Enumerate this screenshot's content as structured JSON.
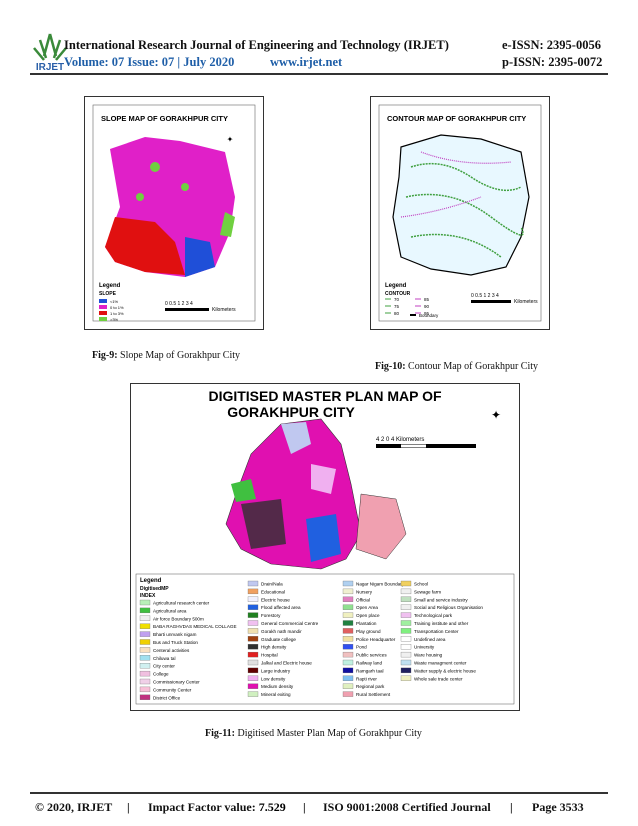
{
  "header": {
    "journal": "International Research Journal of Engineering and Technology (IRJET)",
    "eissn": "e-ISSN: 2395-0056",
    "volume": "Volume: 07 Issue: 07 | July 2020",
    "website": "www.irjet.net",
    "pissn": "p-ISSN: 2395-0072",
    "logo": "IRJET"
  },
  "fig9": {
    "title": "SLOPE MAP OF GORAKHPUR CITY",
    "legend_title": "Legend",
    "legend_sub": "SLOPE",
    "scale": "0 0.5 1  2  3  4",
    "scale_unit": "Kilometers",
    "caption_label": "Fig-9:",
    "caption": "Slope Map of Gorakhpur City",
    "items": [
      {
        "label": "<1%",
        "color": "#1f4fd8"
      },
      {
        "label": "0 to 1%",
        "color": "#e020c8"
      },
      {
        "label": "1 to 3%",
        "color": "#e01010"
      },
      {
        "label": ">3%",
        "color": "#70d040"
      }
    ]
  },
  "fig10": {
    "title": "CONTOUR MAP OF GORAKHPUR CITY",
    "legend_title": "Legend",
    "legend_sub": "CONTOUR",
    "scale": "0 0.5 1  2  3  4",
    "scale_unit": "Kilometers",
    "caption_label": "Fig-10:",
    "caption": "Contour Map of Gorakhpur City",
    "items": [
      "70",
      "75",
      "80",
      "85",
      "90",
      "95",
      "Boundary"
    ]
  },
  "fig11": {
    "title": "DIGITISED MASTER PLAN MAP OF",
    "title2": "GORAKHPUR CITY",
    "scale": "4      2      0                    4 Kilometers",
    "legend_title": "Legend",
    "legend_sub": "DigitisedMP",
    "legend_index": "INDEX",
    "caption_label": "Fig-11:",
    "caption": "Digitised Master Plan Map of Gorakhpur City",
    "columns": [
      [
        {
          "label": "Agricultural research center",
          "color": "#b8f0b8"
        },
        {
          "label": "Agricultural area",
          "color": "#40c040"
        },
        {
          "label": "Air force Boundary 500m",
          "color": "#f0f0f0"
        },
        {
          "label": "BABA RAGHVDAS MEDICAL COLLAGE",
          "color": "#f0e000"
        },
        {
          "label": "Bharti unrvank nigam",
          "color": "#c0a0f0"
        },
        {
          "label": "Bus and Truck Station",
          "color": "#f0d000"
        },
        {
          "label": "Centeral activities",
          "color": "#f8e0c0"
        },
        {
          "label": "Chiluwa tal",
          "color": "#a0e0f0"
        },
        {
          "label": "City center",
          "color": "#d0f0f0"
        },
        {
          "label": "College",
          "color": "#f0c0e0"
        },
        {
          "label": "Commissionary Center",
          "color": "#f0d0e8"
        },
        {
          "label": "Community Center",
          "color": "#f8c0d8"
        },
        {
          "label": "District Office",
          "color": "#c03080"
        }
      ],
      [
        {
          "label": "Drain/Nala",
          "color": "#c0c8f0"
        },
        {
          "label": "Educational",
          "color": "#f0a060"
        },
        {
          "label": "Electric house",
          "color": "#f0f0ff"
        },
        {
          "label": "Flood affected area",
          "color": "#2060e0"
        },
        {
          "label": "Forestory",
          "color": "#208020"
        },
        {
          "label": "General Commercial Centre",
          "color": "#f0c0f0"
        },
        {
          "label": "Gorakh nath mandir",
          "color": "#f0e0b0"
        },
        {
          "label": "Graduate college",
          "color": "#a04010"
        },
        {
          "label": "High density",
          "color": "#303030"
        },
        {
          "label": "Hospital",
          "color": "#e02020"
        },
        {
          "label": "Jalkal and Electric house",
          "color": "#e0e0e0"
        },
        {
          "label": "Large industry",
          "color": "#600000"
        },
        {
          "label": "Low density",
          "color": "#f0b0f0"
        },
        {
          "label": "Medium density",
          "color": "#e010b0"
        },
        {
          "label": "Mineral exiting",
          "color": "#d0f0c0"
        }
      ],
      [
        {
          "label": "Nagar Nigam Boundary",
          "color": "#b0d0f0"
        },
        {
          "label": "Nursery",
          "color": "#f0f0d0"
        },
        {
          "label": "Official",
          "color": "#e080c0"
        },
        {
          "label": "Open Area",
          "color": "#90e090"
        },
        {
          "label": "Open place",
          "color": "#f0f0c0"
        },
        {
          "label": "Plantation",
          "color": "#208040"
        },
        {
          "label": "Play ground",
          "color": "#e06060"
        },
        {
          "label": "Police Headquarter",
          "color": "#f0e0a0"
        },
        {
          "label": "Pond",
          "color": "#3050f0"
        },
        {
          "label": "Public services",
          "color": "#f0c0c0"
        },
        {
          "label": "Railway land",
          "color": "#c0f0e0"
        },
        {
          "label": "Ramgarh taal",
          "color": "#1010a0"
        },
        {
          "label": "Rapti river",
          "color": "#80c0f0"
        },
        {
          "label": "Regional park",
          "color": "#e0f0c0"
        },
        {
          "label": "Rural Settlement",
          "color": "#f0a0b0"
        }
      ],
      [
        {
          "label": "School",
          "color": "#f0d060"
        },
        {
          "label": "Sewage farm",
          "color": "#f0f0f0"
        },
        {
          "label": "Small and service industry",
          "color": "#c0e0c0"
        },
        {
          "label": "Social and Religious Organisation",
          "color": "#f0f0f0"
        },
        {
          "label": "Technological park",
          "color": "#f0c0f0"
        },
        {
          "label": "Training institute and other",
          "color": "#a0f0a0"
        },
        {
          "label": "Transportation Center",
          "color": "#80f080"
        },
        {
          "label": "Undefined area",
          "color": "#ffffff"
        },
        {
          "label": "University",
          "color": "#ffffff"
        },
        {
          "label": "Ware housing",
          "color": "#f0f0f0"
        },
        {
          "label": "Waste managment center",
          "color": "#c0e0f0"
        },
        {
          "label": "Watter supply & electric house",
          "color": "#202060"
        },
        {
          "label": "Whole sale trade center",
          "color": "#f0f0c0"
        }
      ]
    ]
  },
  "footer": {
    "copyright": "© 2020, IRJET",
    "sep1": "|",
    "impact_label": "Impact Factor value:",
    "impact": "7.529",
    "sep2": "|",
    "iso": "ISO 9001:2008 Certified Journal",
    "sep3": "|",
    "page": "Page 3533"
  }
}
